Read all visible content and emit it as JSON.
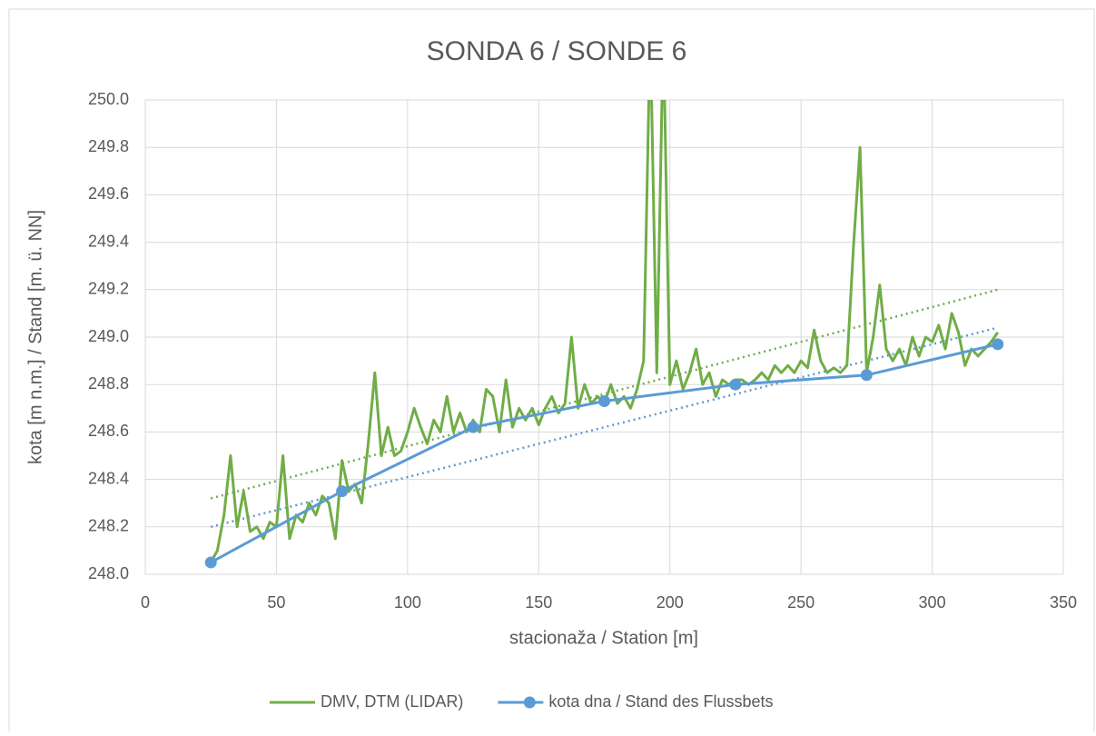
{
  "chart_data": {
    "type": "line",
    "title": "SONDA 6 / SONDE 6",
    "xlabel": "stacionaža / Station [m]",
    "ylabel": "kota [m n.m.] / Stand [m. ü. NN]",
    "xlim": [
      0,
      350
    ],
    "xticks": [
      0,
      50,
      100,
      150,
      200,
      250,
      300,
      350
    ],
    "ylim": [
      248,
      250
    ],
    "yticks": [
      {
        "value": 248,
        "label": "248.0"
      },
      {
        "value": 248.2,
        "label": "248.2"
      },
      {
        "value": 248.4,
        "label": "248.4"
      },
      {
        "value": 248.6,
        "label": "248.6"
      },
      {
        "value": 248.8,
        "label": "248.8"
      },
      {
        "value": 249,
        "label": "249.0"
      },
      {
        "value": 249.2,
        "label": "249.2"
      },
      {
        "value": 249.4,
        "label": "249.4"
      },
      {
        "value": 249.6,
        "label": "249.6"
      },
      {
        "value": 249.8,
        "label": "249.8"
      },
      {
        "value": 250,
        "label": "250.0"
      }
    ],
    "grid": true,
    "legend": "bottom",
    "series": [
      {
        "name": "DMV, DTM (LIDAR)",
        "color": "#70ad47",
        "marker": false,
        "x": [
          25,
          27.5,
          30,
          32.5,
          35,
          37.5,
          40,
          42.5,
          45,
          47.5,
          50,
          52.5,
          55,
          57.5,
          60,
          62.5,
          65,
          67.5,
          70,
          72.5,
          75,
          77.5,
          80,
          82.5,
          85,
          87.5,
          90,
          92.5,
          95,
          97.5,
          100,
          102.5,
          105,
          107.5,
          110,
          112.5,
          115,
          117.5,
          120,
          122.5,
          125,
          127.5,
          130,
          132.5,
          135,
          137.5,
          140,
          142.5,
          145,
          147.5,
          150,
          152.5,
          155,
          157.5,
          160,
          162.5,
          165,
          167.5,
          170,
          172.5,
          175,
          177.5,
          180,
          182.5,
          185,
          187.5,
          190,
          192.5,
          195,
          197.5,
          200,
          202.5,
          205,
          207.5,
          210,
          212.5,
          215,
          217.5,
          220,
          222.5,
          225,
          227.5,
          230,
          232.5,
          235,
          237.5,
          240,
          242.5,
          245,
          247.5,
          250,
          252.5,
          255,
          257.5,
          260,
          262.5,
          265,
          267.5,
          270,
          272.5,
          275,
          277.5,
          280,
          282.5,
          285,
          287.5,
          290,
          292.5,
          295,
          297.5,
          300,
          302.5,
          305,
          307.5,
          310,
          312.5,
          315,
          317.5,
          320,
          322.5,
          325
        ],
        "values": [
          248.05,
          248.1,
          248.25,
          248.5,
          248.2,
          248.35,
          248.18,
          248.2,
          248.15,
          248.22,
          248.2,
          248.5,
          248.15,
          248.25,
          248.22,
          248.3,
          248.25,
          248.33,
          248.3,
          248.15,
          248.48,
          248.35,
          248.38,
          248.3,
          248.55,
          248.85,
          248.5,
          248.62,
          248.5,
          248.52,
          248.6,
          248.7,
          248.62,
          248.55,
          248.65,
          248.6,
          248.75,
          248.6,
          248.68,
          248.6,
          248.65,
          248.6,
          248.78,
          248.75,
          248.6,
          248.82,
          248.62,
          248.7,
          248.65,
          248.7,
          248.63,
          248.7,
          248.75,
          248.68,
          248.72,
          249.0,
          248.7,
          248.8,
          248.72,
          248.75,
          248.72,
          248.8,
          248.72,
          248.75,
          248.7,
          248.78,
          248.9,
          250.3,
          248.85,
          250.3,
          248.8,
          248.9,
          248.78,
          248.85,
          248.95,
          248.8,
          248.85,
          248.75,
          248.82,
          248.8,
          248.82,
          248.82,
          248.8,
          248.82,
          248.85,
          248.82,
          248.88,
          248.85,
          248.88,
          248.85,
          248.9,
          248.87,
          249.03,
          248.9,
          248.85,
          248.87,
          248.85,
          248.88,
          249.38,
          249.8,
          248.85,
          249.0,
          249.22,
          248.95,
          248.9,
          248.95,
          248.88,
          249.0,
          248.92,
          249.0,
          248.98,
          249.05,
          248.95,
          249.1,
          249.02,
          248.88,
          248.95,
          248.92,
          248.95,
          248.98,
          249.02
        ]
      },
      {
        "name": "kota dna / Stand des Flussbets",
        "color": "#5b9bd5",
        "marker": true,
        "x": [
          25,
          75,
          125,
          175,
          225,
          275,
          325
        ],
        "values": [
          248.05,
          248.35,
          248.62,
          248.73,
          248.8,
          248.84,
          248.97
        ]
      }
    ],
    "trendlines": [
      {
        "color": "#70ad47",
        "x": [
          25,
          325
        ],
        "values": [
          248.32,
          249.2
        ]
      },
      {
        "color": "#5b9bd5",
        "x": [
          25,
          325
        ],
        "values": [
          248.2,
          249.04
        ]
      }
    ]
  }
}
